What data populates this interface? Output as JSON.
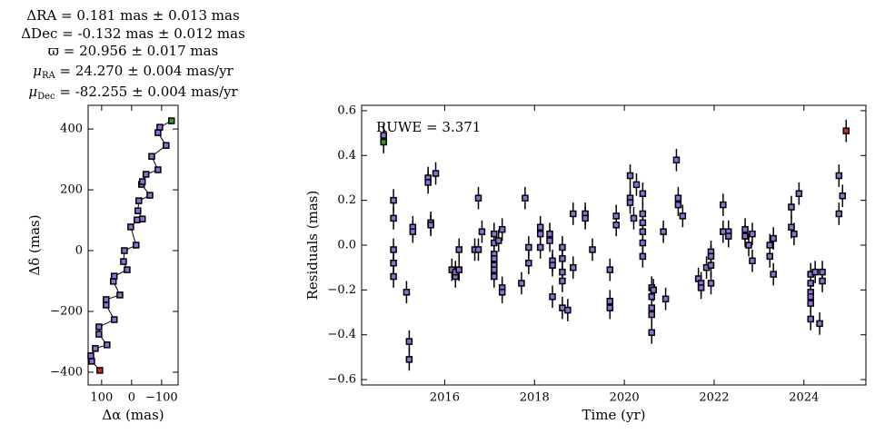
{
  "chart_data": [
    {
      "type": "line",
      "title_lines": [
        "ΔRA = 0.181 mas ± 0.013 mas",
        "ΔDec = -0.132 mas ± 0.012 mas",
        "ϖ = 20.956 ± 0.017 mas",
        {
          "symbol": "μ",
          "sub": "RA",
          "text": " = 24.270 ± 0.004 mas/yr"
        },
        {
          "symbol": "μ",
          "sub": "Dec",
          "text": " = -82.255 ± 0.004 mas/yr"
        }
      ],
      "xlabel": "Δα (mas)",
      "ylabel": "Δδ (mas)",
      "x": [
        106,
        133,
        136,
        121,
        82,
        109,
        109,
        58,
        85,
        85,
        39,
        61,
        58,
        15,
        27,
        24,
        -15,
        3,
        -18,
        -36,
        -21,
        -24,
        -61,
        -33,
        -36,
        -48,
        -88,
        -67,
        -115,
        -88,
        -94,
        -133
      ],
      "values": [
        -394,
        -364,
        -346,
        -322,
        -310,
        -275,
        -251,
        -227,
        -179,
        -161,
        -146,
        -101,
        -84,
        -63,
        -36,
        0,
        18,
        78,
        101,
        104,
        131,
        164,
        182,
        218,
        227,
        251,
        266,
        310,
        346,
        388,
        406,
        427
      ],
      "color": "#8e6fd8",
      "first_color": "#d62728",
      "last_color": "#2ca02c",
      "xlim": [
        145,
        -155
      ],
      "xticks": [
        100,
        0,
        {
          "value": -100,
          "label": "−100"
        }
      ],
      "ylim": [
        -442,
        478
      ],
      "yticks": [
        {
          "value": -400,
          "label": "−400"
        },
        {
          "value": -200,
          "label": "−200"
        },
        0,
        200,
        400
      ]
    },
    {
      "type": "scatter",
      "annotation": "RUWE = 3.371",
      "xlabel": "Time (yr)",
      "ylabel": "Residuals (mas)",
      "x": [
        2014.64,
        2014.64,
        2014.86,
        2014.86,
        2014.86,
        2014.86,
        2014.86,
        2015.15,
        2015.21,
        2015.21,
        2015.29,
        2015.29,
        2015.63,
        2015.63,
        2015.69,
        2015.69,
        2015.8,
        2016.16,
        2016.24,
        2016.24,
        2016.32,
        2016.32,
        2016.67,
        2016.75,
        2016.75,
        2016.83,
        2017.1,
        2017.1,
        2017.1,
        2017.1,
        2017.1,
        2017.1,
        2017.1,
        2017.2,
        2017.28,
        2017.28,
        2017.28,
        2017.71,
        2017.79,
        2017.87,
        2017.87,
        2018.13,
        2018.13,
        2018.13,
        2018.34,
        2018.34,
        2018.4,
        2018.4,
        2018.4,
        2018.62,
        2018.62,
        2018.62,
        2018.62,
        2018.62,
        2018.74,
        2018.86,
        2018.86,
        2019.13,
        2019.13,
        2019.29,
        2019.68,
        2019.68,
        2019.68,
        2019.82,
        2019.82,
        2020.13,
        2020.13,
        2020.13,
        2020.21,
        2020.27,
        2020.41,
        2020.41,
        2020.41,
        2020.41,
        2020.41,
        2020.41,
        2020.61,
        2020.61,
        2020.61,
        2020.61,
        2020.61,
        2020.65,
        2020.87,
        2020.92,
        2021.16,
        2021.2,
        2021.2,
        2021.3,
        2021.65,
        2021.71,
        2021.71,
        2021.83,
        2021.93,
        2021.93,
        2021.93,
        2021.93,
        2022.2,
        2022.2,
        2022.32,
        2022.32,
        2022.69,
        2022.69,
        2022.77,
        2022.85,
        2022.85,
        2023.24,
        2023.24,
        2023.32,
        2023.32,
        2023.72,
        2023.72,
        2023.78,
        2023.89,
        2024.15,
        2024.15,
        2024.15,
        2024.15,
        2024.15,
        2024.15,
        2024.25,
        2024.35,
        2024.41,
        2024.41,
        2024.78,
        2024.78,
        2024.86,
        2024.94
      ],
      "values": [
        0.46,
        0.49,
        0.2,
        0.12,
        -0.02,
        -0.08,
        -0.14,
        -0.21,
        -0.43,
        -0.51,
        0.08,
        0.06,
        0.3,
        0.28,
        0.1,
        0.09,
        0.32,
        -0.11,
        -0.14,
        -0.12,
        -0.02,
        -0.11,
        -0.02,
        0.21,
        -0.02,
        0.06,
        0.05,
        0.01,
        -0.04,
        -0.06,
        -0.09,
        -0.11,
        -0.14,
        0.02,
        0.07,
        -0.19,
        -0.21,
        -0.17,
        0.21,
        -0.01,
        -0.08,
        0.08,
        0.05,
        -0.01,
        0.05,
        0.02,
        -0.07,
        -0.09,
        -0.23,
        -0.01,
        -0.06,
        -0.12,
        -0.16,
        -0.28,
        -0.29,
        0.14,
        -0.1,
        0.14,
        0.12,
        -0.02,
        -0.11,
        -0.25,
        -0.28,
        0.13,
        0.09,
        0.31,
        0.21,
        0.19,
        0.12,
        0.27,
        0.23,
        0.14,
        0.1,
        0.06,
        0.01,
        -0.05,
        -0.19,
        -0.23,
        -0.28,
        -0.31,
        -0.39,
        -0.2,
        0.06,
        -0.24,
        0.38,
        0.21,
        0.18,
        0.13,
        -0.15,
        -0.17,
        -0.19,
        -0.1,
        -0.03,
        -0.05,
        -0.09,
        -0.17,
        0.18,
        0.06,
        0.06,
        0.04,
        0.07,
        0.04,
        0.0,
        0.05,
        -0.07,
        0.0,
        -0.05,
        -0.13,
        0.03,
        0.17,
        0.08,
        0.05,
        0.23,
        -0.13,
        -0.17,
        -0.21,
        -0.23,
        -0.26,
        -0.33,
        -0.12,
        -0.35,
        -0.12,
        -0.16,
        0.31,
        0.14,
        0.22,
        0.51
      ],
      "error": 0.05,
      "color": "#8e6fd8",
      "first_color": "#2ca02c",
      "last_color": "#d62728",
      "xlim": [
        2014.15,
        2025.38
      ],
      "xticks": [
        2016,
        2018,
        2020,
        2022,
        2024
      ],
      "ylim": [
        -0.624,
        0.624
      ],
      "yticks": [
        {
          "value": -0.6,
          "label": "−0.6"
        },
        {
          "value": -0.4,
          "label": "−0.4"
        },
        {
          "value": -0.2,
          "label": "−0.2"
        },
        {
          "value": 0,
          "label": "0.0"
        },
        0.2,
        0.4,
        0.6
      ]
    }
  ]
}
